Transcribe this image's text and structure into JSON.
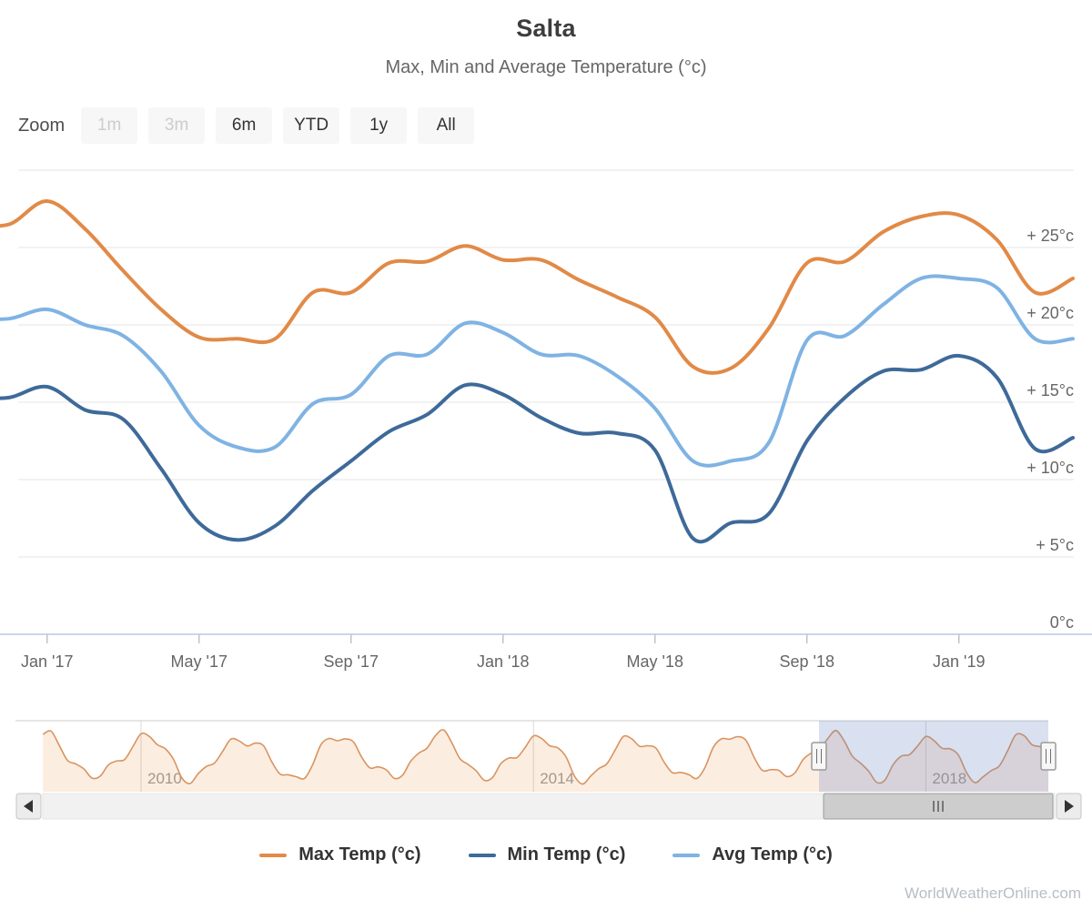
{
  "header": {
    "title": "Salta",
    "subtitle": "Max, Min and Average Temperature (°c)"
  },
  "range_selector": {
    "zoom_label": "Zoom",
    "buttons": [
      {
        "label": "1m",
        "enabled": false
      },
      {
        "label": "3m",
        "enabled": false
      },
      {
        "label": "6m",
        "enabled": true
      },
      {
        "label": "YTD",
        "enabled": true
      },
      {
        "label": "1y",
        "enabled": true
      },
      {
        "label": "All",
        "enabled": true
      }
    ]
  },
  "chart_data": {
    "type": "line",
    "title": "Salta",
    "subtitle": "Max, Min and Average Temperature (°c)",
    "ylabel": "",
    "xlabel": "",
    "unit": "°c",
    "ylim": [
      0,
      30
    ],
    "grid": "horizontal",
    "legend_position": "bottom",
    "categories": [
      "Dec '16",
      "Jan '17",
      "Feb '17",
      "Mar '17",
      "Apr '17",
      "May '17",
      "Jun '17",
      "Jul '17",
      "Aug '17",
      "Sep '17",
      "Oct '17",
      "Nov '17",
      "Dec '17",
      "Jan '18",
      "Feb '18",
      "Mar '18",
      "Apr '18",
      "May '18",
      "Jun '18",
      "Jul '18",
      "Aug '18",
      "Sep '18",
      "Oct '18",
      "Nov '18",
      "Dec '18",
      "Jan '19",
      "Feb '19",
      "Mar '19",
      "Apr '19"
    ],
    "series": [
      {
        "name": "Max Temp (°c)",
        "color": "#e18a47",
        "values": [
          26.5,
          28.0,
          26.2,
          23.5,
          21.0,
          19.2,
          19.1,
          19.1,
          22.1,
          22.1,
          24.0,
          24.1,
          25.1,
          24.2,
          24.2,
          22.9,
          21.8,
          20.5,
          17.3,
          17.2,
          19.8,
          24.0,
          24.1,
          26.0,
          27.0,
          27.1,
          25.5,
          22.1,
          23.0
        ]
      },
      {
        "name": "Min Temp (°c)",
        "color": "#3e6a99",
        "values": [
          15.3,
          16.0,
          14.5,
          13.9,
          10.7,
          7.2,
          6.1,
          7.0,
          9.3,
          11.2,
          13.1,
          14.2,
          16.1,
          15.5,
          14.0,
          13.0,
          13.0,
          11.9,
          6.2,
          7.2,
          7.8,
          12.5,
          15.3,
          17.0,
          17.1,
          18.0,
          16.6,
          12.0,
          12.7
        ]
      },
      {
        "name": "Avg Temp (°c)",
        "color": "#7fb3e3",
        "values": [
          20.4,
          21.0,
          20.0,
          19.3,
          17.0,
          13.5,
          12.1,
          12.1,
          14.9,
          15.5,
          18.0,
          18.1,
          20.1,
          19.5,
          18.1,
          18.0,
          16.7,
          14.6,
          11.2,
          11.2,
          12.4,
          19.0,
          19.3,
          21.3,
          23.0,
          23.0,
          22.4,
          19.1,
          19.1
        ]
      }
    ],
    "yticks": [
      {
        "value": 25,
        "label": "+ 25°c"
      },
      {
        "value": 20,
        "label": "+ 20°c"
      },
      {
        "value": 15,
        "label": "+ 15°c"
      },
      {
        "value": 10,
        "label": "+ 10°c"
      },
      {
        "value": 5,
        "label": "+ 5°c"
      },
      {
        "value": 0,
        "label": "0°c"
      }
    ],
    "xticks": [
      {
        "label": "Jan '17",
        "month_index": 1
      },
      {
        "label": "May '17",
        "month_index": 5
      },
      {
        "label": "Sep '17",
        "month_index": 9
      },
      {
        "label": "Jan '18",
        "month_index": 13
      },
      {
        "label": "May '18",
        "month_index": 17
      },
      {
        "label": "Sep '18",
        "month_index": 21
      },
      {
        "label": "Jan '19",
        "month_index": 25
      }
    ]
  },
  "navigator": {
    "series_name": "Max Temp (°c)",
    "year_labels": [
      {
        "label": "2010",
        "year": 2010
      },
      {
        "label": "2014",
        "year": 2014
      },
      {
        "label": "2018",
        "year": 2018
      }
    ],
    "range_start": "Jan 2009",
    "range_end": "Apr 2019",
    "selected_from": "Dec 2016",
    "selected_to": "Apr 2019",
    "synth": {
      "base": 22.6,
      "amp": 4.6,
      "phase": 0.45,
      "j1": 1.1,
      "f1": 1.7,
      "j2": 0.8,
      "f2": 0.9
    }
  },
  "scrollbar": {
    "left_arrow": "left-triangle",
    "right_arrow": "right-triangle",
    "grip": "III"
  },
  "legend": {
    "items": [
      {
        "label": "Max Temp (°c)",
        "color": "#e18a47"
      },
      {
        "label": "Min Temp (°c)",
        "color": "#3e6a99"
      },
      {
        "label": "Avg Temp (°c)",
        "color": "#7fb3e3"
      }
    ]
  },
  "watermark": "WorldWeatherOnline.com",
  "colors": {
    "grid": "#e4e4e4",
    "axis_line": "#ccd6eb",
    "tick": "#bbc4cc",
    "axis_label": "#666666",
    "nav_line": "#d9945f",
    "nav_fill": "rgba(237,143,67,0.16)",
    "nav_grid": "#d8d8d8",
    "nav_label": "#999999",
    "mask": "rgba(102,133,194,0.25)",
    "handle_fill": "#f7f7f7",
    "handle_stroke": "#9a9a9a",
    "scroll_track": "#f1f1f1",
    "scroll_thumb": "#cdcdcd",
    "scroll_border": "#9c9c9c",
    "button_fill": "#ececec",
    "button_stroke": "#c6c6c6",
    "arrow": "#333333"
  }
}
